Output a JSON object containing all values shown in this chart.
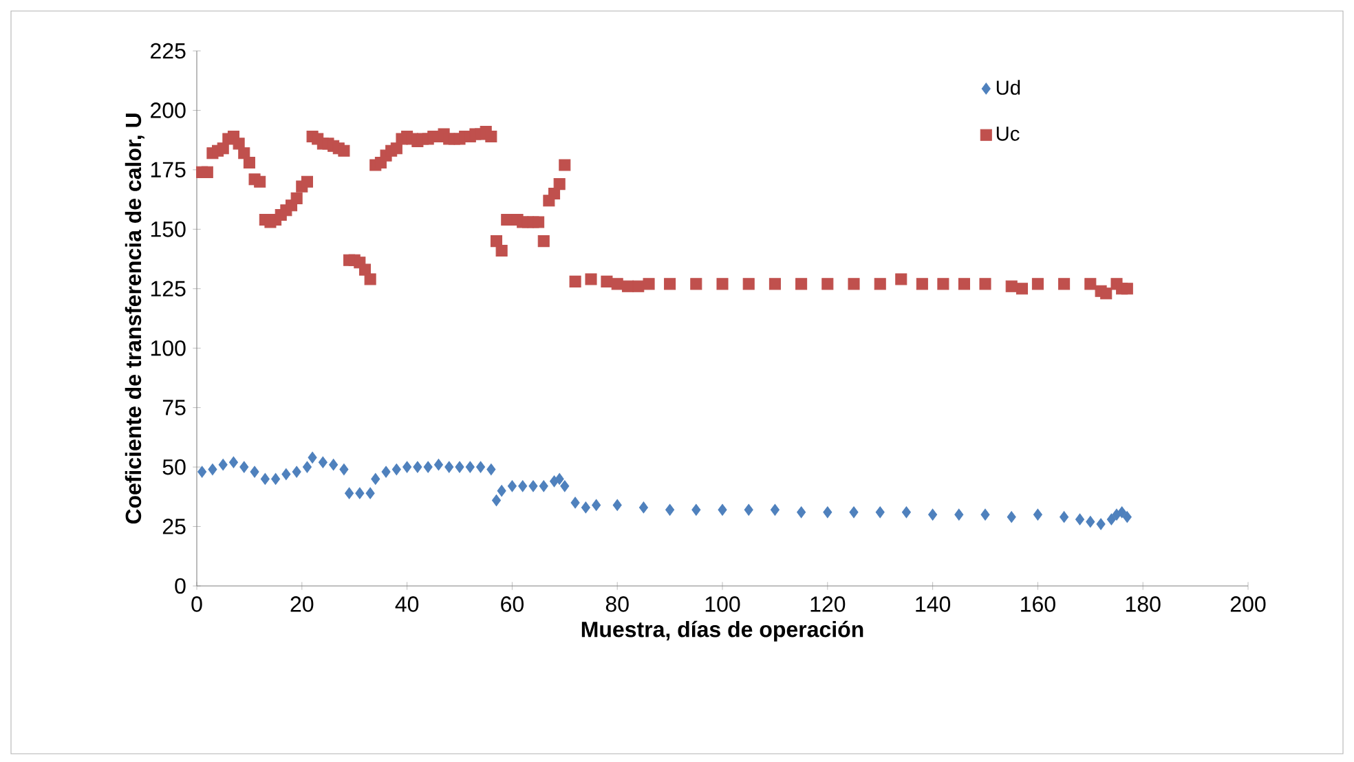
{
  "chart_data": {
    "type": "scatter",
    "xlabel": "Muestra, días de operación",
    "ylabel": "Coeficiente de transferencia de calor, U",
    "xlim": [
      0,
      200
    ],
    "xticks": [
      0,
      20,
      40,
      60,
      80,
      100,
      120,
      140,
      160,
      180,
      200
    ],
    "ylim": [
      0,
      225
    ],
    "yticks": [
      0,
      25,
      50,
      75,
      100,
      125,
      150,
      175,
      200,
      225
    ],
    "grid": false,
    "legend": "top right",
    "series": [
      {
        "name": "Ud",
        "color": "#4f81bd",
        "marker": "diamond",
        "x": [
          1,
          3,
          5,
          7,
          9,
          11,
          13,
          15,
          17,
          19,
          21,
          22,
          24,
          26,
          28,
          29,
          31,
          33,
          34,
          36,
          38,
          40,
          42,
          44,
          46,
          48,
          50,
          52,
          54,
          56,
          57,
          58,
          60,
          62,
          64,
          66,
          68,
          69,
          70,
          72,
          74,
          76,
          80,
          85,
          90,
          95,
          100,
          105,
          110,
          115,
          120,
          125,
          130,
          135,
          140,
          145,
          150,
          155,
          160,
          165,
          168,
          170,
          172,
          174,
          175,
          176,
          177
        ],
        "values": [
          48,
          49,
          51,
          52,
          50,
          48,
          45,
          45,
          47,
          48,
          50,
          54,
          52,
          51,
          49,
          39,
          39,
          39,
          45,
          48,
          49,
          50,
          50,
          50,
          51,
          50,
          50,
          50,
          50,
          49,
          36,
          40,
          42,
          42,
          42,
          42,
          44,
          45,
          42,
          35,
          33,
          34,
          34,
          33,
          32,
          32,
          32,
          32,
          32,
          31,
          31,
          31,
          31,
          31,
          30,
          30,
          30,
          29,
          30,
          29,
          28,
          27,
          26,
          28,
          30,
          31,
          29
        ]
      },
      {
        "name": "Uc",
        "color": "#c0504d",
        "marker": "square",
        "x": [
          1,
          2,
          3,
          4,
          5,
          6,
          7,
          8,
          9,
          10,
          11,
          12,
          13,
          14,
          15,
          16,
          17,
          18,
          19,
          20,
          21,
          22,
          23,
          24,
          25,
          26,
          27,
          28,
          29,
          30,
          31,
          32,
          33,
          34,
          35,
          36,
          37,
          38,
          39,
          40,
          41,
          42,
          43,
          44,
          45,
          46,
          47,
          48,
          49,
          50,
          51,
          52,
          53,
          54,
          55,
          56,
          57,
          58,
          59,
          61,
          62,
          63,
          64,
          65,
          66,
          67,
          68,
          69,
          70,
          72,
          75,
          78,
          80,
          82,
          84,
          86,
          90,
          95,
          100,
          105,
          110,
          115,
          120,
          125,
          130,
          134,
          138,
          142,
          146,
          150,
          155,
          157,
          160,
          165,
          170,
          172,
          173,
          175,
          176,
          177
        ],
        "values": [
          174,
          174,
          182,
          183,
          184,
          188,
          189,
          186,
          182,
          178,
          171,
          170,
          154,
          153,
          154,
          156,
          158,
          160,
          163,
          168,
          170,
          189,
          188,
          186,
          186,
          185,
          184,
          183,
          137,
          137,
          136,
          133,
          129,
          177,
          178,
          181,
          183,
          184,
          188,
          189,
          188,
          187,
          188,
          188,
          189,
          189,
          190,
          188,
          188,
          188,
          189,
          189,
          190,
          190,
          191,
          189,
          145,
          141,
          154,
          154,
          153,
          153,
          153,
          153,
          145,
          162,
          165,
          169,
          177,
          128,
          129,
          128,
          127,
          126,
          126,
          127,
          127,
          127,
          127,
          127,
          127,
          127,
          127,
          127,
          127,
          129,
          127,
          127,
          127,
          127,
          126,
          125,
          127,
          127,
          127,
          124,
          123,
          127,
          125,
          125
        ]
      }
    ]
  }
}
